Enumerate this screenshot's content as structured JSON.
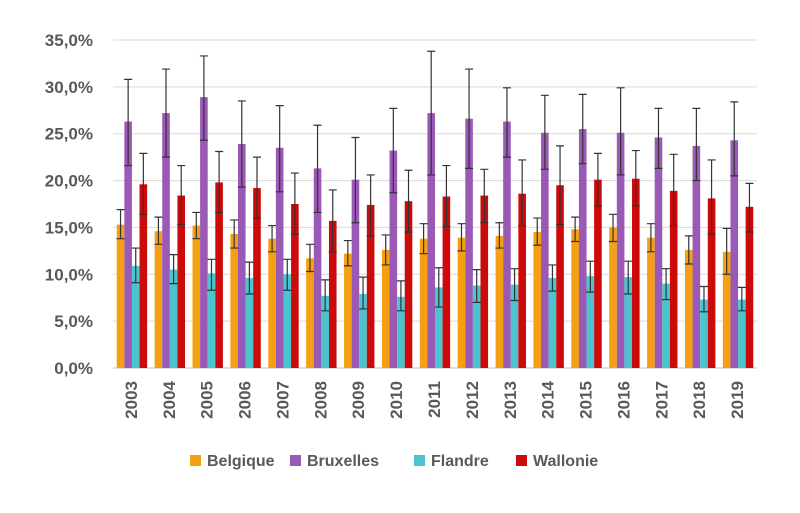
{
  "chart_data": {
    "type": "bar",
    "title": "",
    "xlabel": "",
    "ylabel": "",
    "ylim": [
      0,
      35
    ],
    "y_ticks": [
      "0,0%",
      "5,0%",
      "10,0%",
      "15,0%",
      "20,0%",
      "25,0%",
      "30,0%",
      "35,0%"
    ],
    "grid": true,
    "legend_position": "bottom",
    "categories": [
      "2003",
      "2004",
      "2005",
      "2006",
      "2007",
      "2008",
      "2009",
      "2010",
      "2011",
      "2012",
      "2013",
      "2014",
      "2015",
      "2016",
      "2017",
      "2018",
      "2019"
    ],
    "series": [
      {
        "name": "Belgique",
        "color": "#f59f12",
        "values": [
          15.3,
          14.6,
          15.2,
          14.3,
          13.8,
          11.7,
          12.2,
          12.6,
          13.8,
          13.9,
          14.1,
          14.5,
          14.8,
          15.0,
          13.9,
          12.6,
          12.4
        ],
        "err_low": [
          13.8,
          13.2,
          13.8,
          12.8,
          12.4,
          10.3,
          10.9,
          11.0,
          12.2,
          12.5,
          12.8,
          13.1,
          13.5,
          13.5,
          12.4,
          11.1,
          10.0
        ],
        "err_high": [
          16.9,
          16.1,
          16.6,
          15.8,
          15.2,
          13.2,
          13.6,
          14.2,
          15.4,
          15.4,
          15.5,
          16.0,
          16.1,
          16.4,
          15.4,
          14.1,
          14.9
        ]
      },
      {
        "name": "Bruxelles",
        "color": "#9b59b6",
        "values": [
          26.3,
          27.2,
          28.9,
          23.9,
          23.5,
          21.3,
          20.1,
          23.2,
          27.2,
          26.6,
          26.3,
          25.1,
          25.5,
          25.1,
          24.6,
          23.7,
          24.3
        ],
        "err_low": [
          21.6,
          22.5,
          24.3,
          19.3,
          18.8,
          16.6,
          15.5,
          18.7,
          20.6,
          21.3,
          22.5,
          21.2,
          21.8,
          20.6,
          21.3,
          20.0,
          20.5
        ],
        "err_high": [
          30.8,
          31.9,
          33.3,
          28.5,
          28.0,
          25.9,
          24.6,
          27.7,
          33.8,
          31.9,
          29.9,
          29.1,
          29.2,
          29.9,
          27.7,
          27.7,
          28.4
        ]
      },
      {
        "name": "Flandre",
        "color": "#4cc4cf",
        "values": [
          10.9,
          10.5,
          10.1,
          9.6,
          10.0,
          7.7,
          7.9,
          7.6,
          8.6,
          8.8,
          8.9,
          9.6,
          9.8,
          9.7,
          9.0,
          7.3,
          7.3
        ],
        "err_low": [
          9.1,
          9.0,
          8.3,
          7.9,
          8.3,
          6.1,
          6.3,
          6.1,
          6.5,
          7.0,
          7.2,
          8.2,
          8.1,
          7.9,
          7.3,
          6.0,
          6.1
        ],
        "err_high": [
          12.8,
          12.1,
          11.6,
          11.3,
          11.6,
          9.4,
          9.7,
          9.3,
          10.7,
          10.5,
          10.6,
          11.0,
          11.4,
          11.4,
          10.6,
          8.7,
          8.6
        ]
      },
      {
        "name": "Wallonie",
        "color": "#cc0a0a",
        "values": [
          19.6,
          18.4,
          19.8,
          19.2,
          17.5,
          15.7,
          17.4,
          17.8,
          18.3,
          18.4,
          18.6,
          19.5,
          20.1,
          20.2,
          18.9,
          18.1,
          17.2
        ],
        "err_low": [
          16.4,
          15.3,
          16.6,
          16.0,
          14.3,
          12.4,
          14.1,
          14.5,
          15.1,
          15.5,
          15.2,
          15.3,
          17.3,
          17.3,
          15.2,
          14.3,
          14.5
        ],
        "err_high": [
          22.9,
          21.6,
          23.1,
          22.5,
          20.8,
          19.0,
          20.6,
          21.1,
          21.6,
          21.2,
          22.2,
          23.7,
          22.9,
          23.2,
          22.8,
          22.2,
          19.7
        ]
      }
    ]
  }
}
